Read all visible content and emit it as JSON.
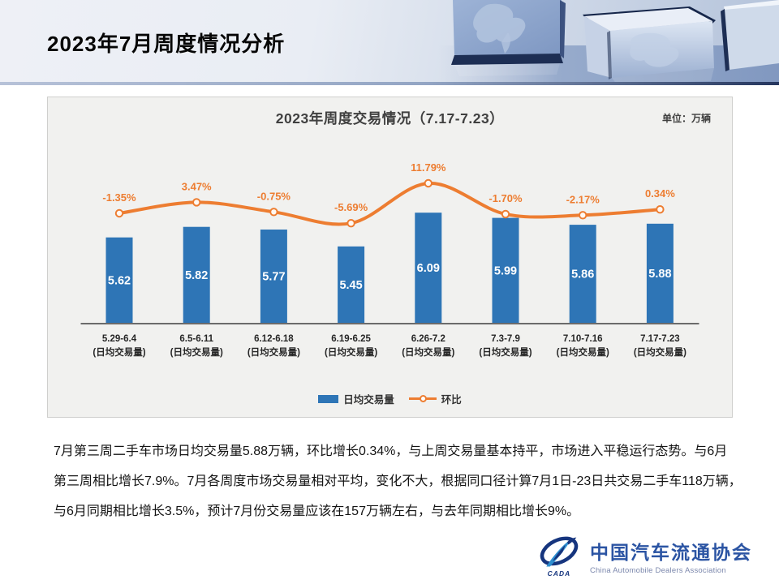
{
  "slide": {
    "title": "2023年7月周度情况分析"
  },
  "chart": {
    "title": "2023年周度交易情况（7.17-7.23）",
    "unit_label": "单位：万辆",
    "legend": [
      {
        "label": "日均交易量",
        "type": "bar",
        "color": "#2E75B6"
      },
      {
        "label": "环比",
        "type": "line",
        "color": "#ED7D31"
      }
    ]
  },
  "chart_data": {
    "type": "bar+line combo",
    "title": "2023年周度交易情况（7.17-7.23）",
    "unit": "万辆",
    "categories": [
      "5.29-6.4",
      "6.5-6.11",
      "6.12-6.18",
      "6.19-6.25",
      "6.26-7.2",
      "7.3-7.9",
      "7.10-7.16",
      "7.17-7.23"
    ],
    "category_sublabel": "(日均交易量)",
    "bar_axis_min": 4.0,
    "grid": "off",
    "legend_position": "bottom-center",
    "series": [
      {
        "name": "日均交易量",
        "type": "bar",
        "color": "#2E75B6",
        "values": [
          5.62,
          5.82,
          5.77,
          5.45,
          6.09,
          5.99,
          5.86,
          5.88
        ]
      },
      {
        "name": "环比",
        "type": "line",
        "color": "#ED7D31",
        "values": [
          -1.35,
          3.47,
          -0.75,
          -5.69,
          11.79,
          -1.7,
          -2.17,
          0.34
        ],
        "labels": [
          "-1.35%",
          "3.47%",
          "-0.75%",
          "-5.69%",
          "11.79%",
          "-1.70%",
          "-2.17%",
          "0.34%"
        ]
      }
    ]
  },
  "body": {
    "lines": [
      "7月第三周二手车市场日均交易量5.88万辆，环比增长0.34%，与上周交易量基本持平，市场进入平稳运行态势。与6月",
      "第三周相比增长7.9%。7月各周度市场交易量相对平均，变化不大，根据同口径计算7月1日-23日共交易二手车118万辆，",
      "与6月同期相比增长3.5%，预计7月份交易量应该在157万辆左右，与去年同期相比增长9%。"
    ]
  },
  "footer_logo": {
    "emblem_text": "CADA",
    "org_cn": "中国汽车流通协会",
    "org_en": "China Automobile Dealers Association"
  }
}
